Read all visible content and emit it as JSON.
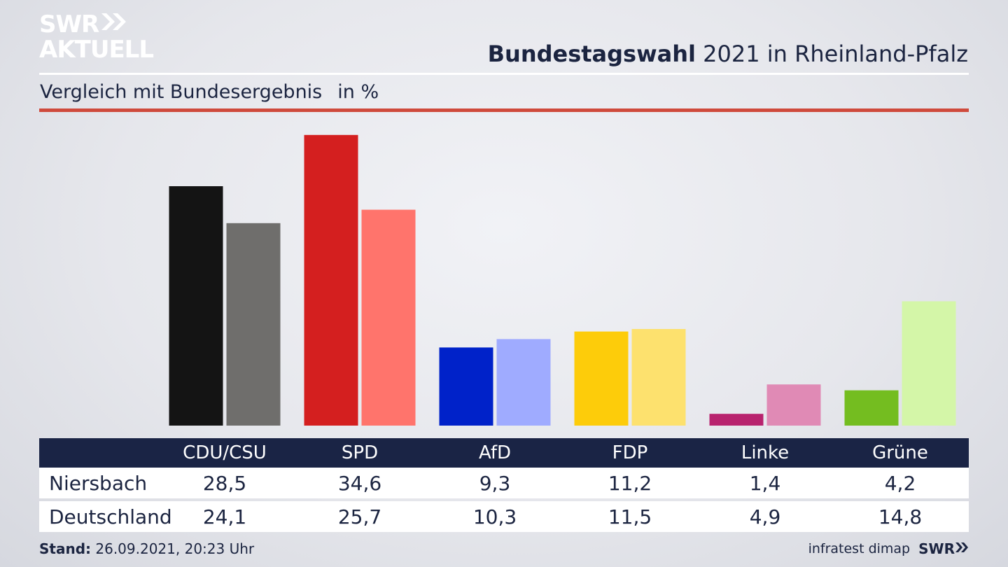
{
  "brand": {
    "logo_line1": "SWR",
    "logo_line2": "AKTUELL",
    "footer_brand": "SWR"
  },
  "header": {
    "title_strong": "Bundestagswahl",
    "title_rest": " 2021 in Rheinland-Pfalz",
    "subtitle": "Vergleich mit Bundesergebnis",
    "unit": "in %"
  },
  "chart_data": {
    "type": "bar",
    "categories": [
      "CDU/CSU",
      "SPD",
      "AfD",
      "FDP",
      "Linke",
      "Grüne"
    ],
    "series": [
      {
        "name": "Niersbach",
        "values": [
          28.5,
          34.6,
          9.3,
          11.2,
          1.4,
          4.2
        ]
      },
      {
        "name": "Deutschland",
        "values": [
          24.1,
          25.7,
          10.3,
          11.5,
          4.9,
          14.8
        ]
      }
    ],
    "colors": {
      "Niersbach": [
        "#141414",
        "#d41f1f",
        "#0022c9",
        "#fdcc0a",
        "#b8236e",
        "#74bd20"
      ],
      "Deutschland": [
        "#6f6e6c",
        "#ff746c",
        "#9fabff",
        "#fde16e",
        "#e08ab5",
        "#d4f6a8"
      ]
    },
    "ylim": [
      0,
      35
    ],
    "grid": false,
    "legend": "table-below"
  },
  "table": {
    "rows": [
      {
        "label": "Niersbach",
        "values": [
          "28,5",
          "34,6",
          "9,3",
          "11,2",
          "1,4",
          "4,2"
        ]
      },
      {
        "label": "Deutschland",
        "values": [
          "24,1",
          "25,7",
          "10,3",
          "11,5",
          "4,9",
          "14,8"
        ]
      }
    ]
  },
  "footer": {
    "stand_label": "Stand:",
    "stand_value": " 26.09.2021, 20:23 Uhr",
    "source": "infratest dimap"
  },
  "colors": {
    "navy": "#1a2445",
    "accent_red": "#cf4a3c"
  }
}
